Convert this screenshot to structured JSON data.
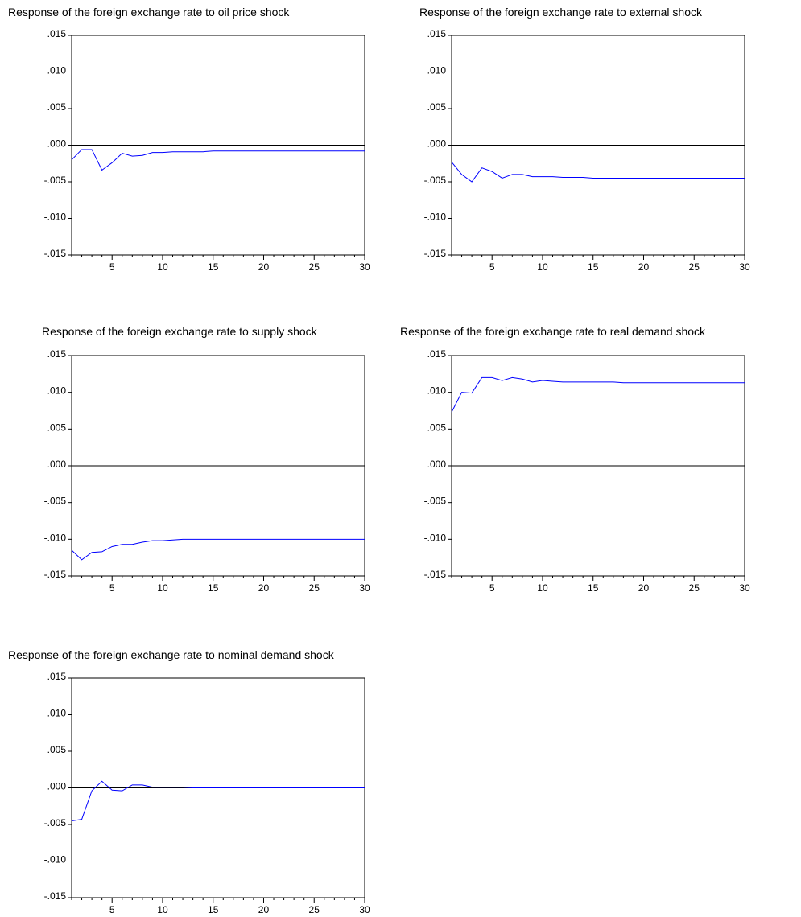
{
  "chart_data": [
    {
      "type": "line",
      "title": "Response of the foreign exchange rate to oil price shock",
      "xlabel": "",
      "ylabel": "",
      "xlim": [
        1,
        30
      ],
      "ylim": [
        -0.015,
        0.015
      ],
      "xticks": [
        "5",
        "10",
        "15",
        "20",
        "25",
        "30"
      ],
      "yticks": [
        ".015",
        ".010",
        ".005",
        ".000",
        "-.005",
        "-.010",
        "-.015"
      ],
      "zero_line": true,
      "grid": false,
      "line_color": "#0000ff",
      "x": [
        1,
        2,
        3,
        4,
        5,
        6,
        7,
        8,
        9,
        10,
        11,
        12,
        13,
        14,
        15,
        16,
        17,
        18,
        19,
        20,
        21,
        22,
        23,
        24,
        25,
        26,
        27,
        28,
        29,
        30
      ],
      "values": [
        -0.002,
        -0.0006,
        -0.0006,
        -0.0034,
        -0.0024,
        -0.0011,
        -0.0015,
        -0.0014,
        -0.001,
        -0.001,
        -0.0009,
        -0.0009,
        -0.0009,
        -0.0009,
        -0.0008,
        -0.0008,
        -0.0008,
        -0.0008,
        -0.0008,
        -0.0008,
        -0.0008,
        -0.0008,
        -0.0008,
        -0.0008,
        -0.0008,
        -0.0008,
        -0.0008,
        -0.0008,
        -0.0008,
        -0.0008
      ]
    },
    {
      "type": "line",
      "title": "Response of the foreign exchange rate to external shock",
      "xlabel": "",
      "ylabel": "",
      "xlim": [
        1,
        30
      ],
      "ylim": [
        -0.015,
        0.015
      ],
      "xticks": [
        "5",
        "10",
        "15",
        "20",
        "25",
        "30"
      ],
      "yticks": [
        ".015",
        ".010",
        ".005",
        ".000",
        "-.005",
        "-.010",
        "-.015"
      ],
      "zero_line": true,
      "grid": false,
      "line_color": "#0000ff",
      "x": [
        1,
        2,
        3,
        4,
        5,
        6,
        7,
        8,
        9,
        10,
        11,
        12,
        13,
        14,
        15,
        16,
        17,
        18,
        19,
        20,
        21,
        22,
        23,
        24,
        25,
        26,
        27,
        28,
        29,
        30
      ],
      "values": [
        -0.0023,
        -0.004,
        -0.005,
        -0.0031,
        -0.0036,
        -0.0045,
        -0.004,
        -0.004,
        -0.0043,
        -0.0043,
        -0.0043,
        -0.0044,
        -0.0044,
        -0.0044,
        -0.0045,
        -0.0045,
        -0.0045,
        -0.0045,
        -0.0045,
        -0.0045,
        -0.0045,
        -0.0045,
        -0.0045,
        -0.0045,
        -0.0045,
        -0.0045,
        -0.0045,
        -0.0045,
        -0.0045,
        -0.0045
      ]
    },
    {
      "type": "line",
      "title": "Response of the foreign exchange rate to supply shock",
      "xlabel": "",
      "ylabel": "",
      "xlim": [
        1,
        30
      ],
      "ylim": [
        -0.015,
        0.015
      ],
      "xticks": [
        "5",
        "10",
        "15",
        "20",
        "25",
        "30"
      ],
      "yticks": [
        ".015",
        ".010",
        ".005",
        ".000",
        "-.005",
        "-.010",
        "-.015"
      ],
      "zero_line": true,
      "grid": false,
      "line_color": "#0000ff",
      "x": [
        1,
        2,
        3,
        4,
        5,
        6,
        7,
        8,
        9,
        10,
        11,
        12,
        13,
        14,
        15,
        16,
        17,
        18,
        19,
        20,
        21,
        22,
        23,
        24,
        25,
        26,
        27,
        28,
        29,
        30
      ],
      "values": [
        -0.0115,
        -0.0128,
        -0.0118,
        -0.0117,
        -0.011,
        -0.0107,
        -0.0107,
        -0.0104,
        -0.0102,
        -0.0102,
        -0.0101,
        -0.01,
        -0.01,
        -0.01,
        -0.01,
        -0.01,
        -0.01,
        -0.01,
        -0.01,
        -0.01,
        -0.01,
        -0.01,
        -0.01,
        -0.01,
        -0.01,
        -0.01,
        -0.01,
        -0.01,
        -0.01,
        -0.01
      ]
    },
    {
      "type": "line",
      "title": "Response of the foreign exchange rate to real demand shock",
      "xlabel": "",
      "ylabel": "",
      "xlim": [
        1,
        30
      ],
      "ylim": [
        -0.015,
        0.015
      ],
      "xticks": [
        "5",
        "10",
        "15",
        "20",
        "25",
        "30"
      ],
      "yticks": [
        ".015",
        ".010",
        ".005",
        ".000",
        "-.005",
        "-.010",
        "-.015"
      ],
      "zero_line": true,
      "grid": false,
      "line_color": "#0000ff",
      "x": [
        1,
        2,
        3,
        4,
        5,
        6,
        7,
        8,
        9,
        10,
        11,
        12,
        13,
        14,
        15,
        16,
        17,
        18,
        19,
        20,
        21,
        22,
        23,
        24,
        25,
        26,
        27,
        28,
        29,
        30
      ],
      "values": [
        0.0073,
        0.01,
        0.0099,
        0.012,
        0.012,
        0.0116,
        0.012,
        0.0118,
        0.0114,
        0.0116,
        0.0115,
        0.0114,
        0.0114,
        0.0114,
        0.0114,
        0.0114,
        0.0114,
        0.0113,
        0.0113,
        0.0113,
        0.0113,
        0.0113,
        0.0113,
        0.0113,
        0.0113,
        0.0113,
        0.0113,
        0.0113,
        0.0113,
        0.0113
      ]
    },
    {
      "type": "line",
      "title": "Response of the foreign exchange rate to nominal demand shock",
      "xlabel": "",
      "ylabel": "",
      "xlim": [
        1,
        30
      ],
      "ylim": [
        -0.015,
        0.015
      ],
      "xticks": [
        "5",
        "10",
        "15",
        "20",
        "25",
        "30"
      ],
      "yticks": [
        ".015",
        ".010",
        ".005",
        ".000",
        "-.005",
        "-.010",
        "-.015"
      ],
      "zero_line": true,
      "grid": false,
      "line_color": "#0000ff",
      "x": [
        1,
        2,
        3,
        4,
        5,
        6,
        7,
        8,
        9,
        10,
        11,
        12,
        13,
        14,
        15,
        16,
        17,
        18,
        19,
        20,
        21,
        22,
        23,
        24,
        25,
        26,
        27,
        28,
        29,
        30
      ],
      "values": [
        -0.0045,
        -0.0043,
        -0.0004,
        0.0009,
        -0.0003,
        -0.0004,
        0.0004,
        0.0004,
        0.0001,
        0.0001,
        0.0001,
        0.0001,
        0,
        0,
        0,
        0,
        0,
        0,
        0,
        0,
        0,
        0,
        0,
        0,
        0,
        0,
        0,
        0,
        0,
        0
      ]
    }
  ]
}
